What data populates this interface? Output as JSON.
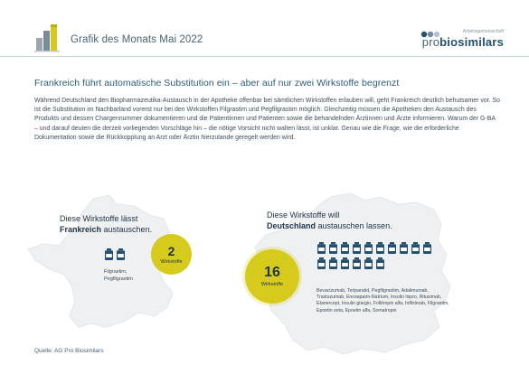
{
  "header": {
    "title": "Grafik des Monats Mai 2022",
    "brand_small": "Arbeitsgemeinschaft",
    "brand_pro": "pro",
    "brand_bio": "biosimilars"
  },
  "headline": "Frankreich führt automatische Substitution ein – aber auf nur zwei Wirkstoffe begrenzt",
  "body": "Während Deutschland den Biopharmazeutika-Austausch in der Apotheke offenbar bei sämtlichen Wirkstoffen erlauben will, geht Frankreich deutlich behutsamer vor. So ist die Substitution im Nachbarland vorerst nur bei den Wirkstoffen Filgrastim und Pegfilgrastim möglich. Gleichzeitig müssen die Apotheken den Austausch des Produkts und dessen Chargennummer dokumentieren und die Patientinnen und Patienten sowie die behandelnden Ärztinnen und Ärzte informieren. Warum der G-BA – und darauf deuten die derzeit vorliegenden Vorschläge hin – die nötige Vorsicht nicht walten lässt, ist unklar. Genau wie die Frage, wie die erforderliche Dokumentation sowie die Rückkopplung an Arzt oder Ärztin hierzulande geregelt werden wird.",
  "france": {
    "label_line1": "Diese Wirkstoffe lässt",
    "label_bold": "Frankreich",
    "label_rest": " austauschen.",
    "count": "2",
    "count_label": "Wirkstoffe",
    "drugs_line1": "Filgrastim,",
    "drugs_line2": "Pegfilgrastim",
    "vial_count": 2
  },
  "germany": {
    "label_line1": "Diese Wirkstoffe will",
    "label_bold": "Deutschland",
    "label_rest": " austauschen lassen.",
    "count": "16",
    "count_label": "Wirkstoffe",
    "drugs": "Bevacizumab, Teriparatid, Pegfilgrastim, Adalimumab, Trastuzumab, Enoxaparin-Natrium, Insulin lispro, Rituximab, Etanercept, Insulin glargin, Follitropin alfa, Infliximab, Filgrastim, Epoetin zeta, Epoetin alfa, Somatropin",
    "vial_count": 16
  },
  "source": "Quelle:   AG Pro Biosimilars",
  "colors": {
    "accent_yellow": "#d6cb1d",
    "navy": "#24506e",
    "map_gray": "#eef0f2"
  }
}
